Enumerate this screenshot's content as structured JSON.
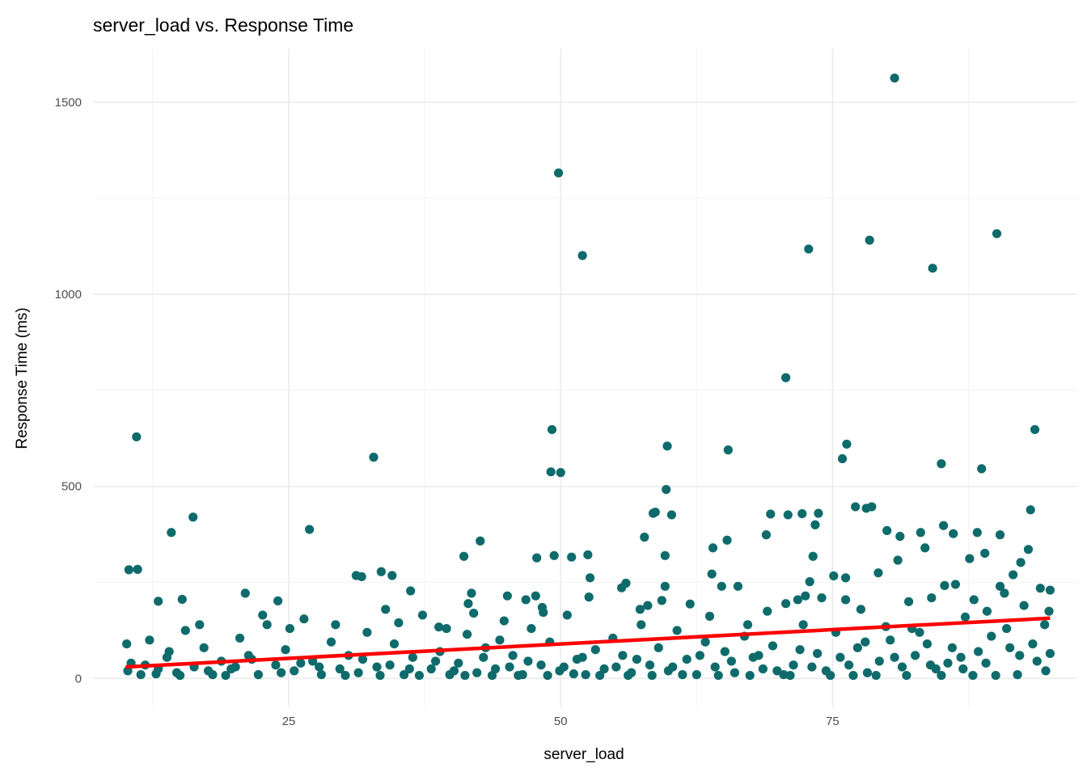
{
  "chart_data": {
    "type": "scatter",
    "title": "server_load vs. Response Time",
    "xlabel": "server_load",
    "ylabel": "Response Time (ms)",
    "xlim": [
      7,
      97.5
    ],
    "ylim": [
      -75,
      1640
    ],
    "x_ticks": [
      25,
      50,
      75
    ],
    "x_tick_labels": [
      "25",
      "50",
      "75"
    ],
    "y_ticks": [
      0,
      500,
      1000,
      1500
    ],
    "y_tick_labels": [
      "0",
      "500",
      "1000",
      "1500"
    ],
    "grid": true,
    "point_color": "#0f6b6b",
    "trend_color": "#ff0000",
    "trend_line": {
      "x": [
        10,
        95
      ],
      "y": [
        30,
        157
      ]
    },
    "points": [
      [
        11.0,
        629
      ],
      [
        10.3,
        283
      ],
      [
        11.1,
        284
      ],
      [
        14.2,
        380
      ],
      [
        16.2,
        420
      ],
      [
        26.9,
        388
      ],
      [
        32.8,
        576
      ],
      [
        49.8,
        1316
      ],
      [
        52.0,
        1101
      ],
      [
        49.2,
        648
      ],
      [
        49.1,
        538
      ],
      [
        50.0,
        536
      ],
      [
        59.8,
        605
      ],
      [
        59.7,
        492
      ],
      [
        65.4,
        595
      ],
      [
        70.7,
        783
      ],
      [
        72.8,
        1118
      ],
      [
        76.3,
        610
      ],
      [
        75.9,
        572
      ],
      [
        78.4,
        1141
      ],
      [
        80.7,
        1563
      ],
      [
        84.2,
        1068
      ],
      [
        85.0,
        559
      ],
      [
        88.7,
        546
      ],
      [
        90.1,
        1158
      ],
      [
        93.6,
        648
      ],
      [
        93.2,
        439
      ],
      [
        78.6,
        447
      ],
      [
        78.1,
        443
      ],
      [
        69.3,
        428
      ],
      [
        70.9,
        426
      ],
      [
        72.2,
        429
      ],
      [
        73.7,
        430
      ],
      [
        58.5,
        430
      ],
      [
        60.2,
        426
      ],
      [
        58.7,
        433
      ],
      [
        73.4,
        400
      ],
      [
        85.2,
        398
      ],
      [
        86.1,
        377
      ],
      [
        88.3,
        380
      ],
      [
        90.4,
        374
      ],
      [
        80.0,
        385
      ],
      [
        81.2,
        370
      ],
      [
        83.1,
        380
      ],
      [
        83.5,
        340
      ],
      [
        93.0,
        336
      ],
      [
        92.3,
        302
      ],
      [
        65.3,
        360
      ],
      [
        64.0,
        340
      ],
      [
        57.7,
        368
      ],
      [
        68.9,
        374
      ],
      [
        42.6,
        358
      ],
      [
        41.1,
        318
      ],
      [
        47.8,
        314
      ],
      [
        49.4,
        320
      ],
      [
        51.0,
        316
      ],
      [
        52.5,
        322
      ],
      [
        31.2,
        268
      ],
      [
        31.7,
        265
      ],
      [
        33.5,
        278
      ],
      [
        34.5,
        268
      ],
      [
        59.6,
        320
      ],
      [
        73.2,
        318
      ],
      [
        75.1,
        267
      ],
      [
        76.2,
        262
      ],
      [
        63.9,
        272
      ],
      [
        77.1,
        447
      ],
      [
        79.2,
        275
      ],
      [
        81.0,
        308
      ],
      [
        87.6,
        312
      ],
      [
        89.0,
        326
      ],
      [
        13.0,
        201
      ],
      [
        15.2,
        206
      ],
      [
        21.0,
        222
      ],
      [
        24.0,
        202
      ],
      [
        36.2,
        228
      ],
      [
        38.8,
        134
      ],
      [
        41.8,
        222
      ],
      [
        41.5,
        195
      ],
      [
        42.0,
        170
      ],
      [
        45.1,
        215
      ],
      [
        46.8,
        205
      ],
      [
        47.7,
        215
      ],
      [
        48.3,
        185
      ],
      [
        48.4,
        172
      ],
      [
        52.6,
        212
      ],
      [
        52.7,
        262
      ],
      [
        55.6,
        236
      ],
      [
        56.0,
        248
      ],
      [
        57.3,
        180
      ],
      [
        58.0,
        190
      ],
      [
        59.3,
        203
      ],
      [
        59.6,
        240
      ],
      [
        61.9,
        194
      ],
      [
        63.7,
        162
      ],
      [
        64.8,
        240
      ],
      [
        66.3,
        240
      ],
      [
        67.2,
        140
      ],
      [
        69.0,
        175
      ],
      [
        70.7,
        195
      ],
      [
        71.8,
        205
      ],
      [
        72.5,
        215
      ],
      [
        72.9,
        252
      ],
      [
        74.0,
        210
      ],
      [
        76.2,
        205
      ],
      [
        77.6,
        180
      ],
      [
        79.9,
        135
      ],
      [
        82.0,
        200
      ],
      [
        83.0,
        120
      ],
      [
        84.1,
        210
      ],
      [
        85.3,
        242
      ],
      [
        86.3,
        245
      ],
      [
        87.2,
        160
      ],
      [
        88.0,
        205
      ],
      [
        89.2,
        175
      ],
      [
        90.4,
        240
      ],
      [
        90.8,
        222
      ],
      [
        91.6,
        270
      ],
      [
        92.6,
        190
      ],
      [
        94.1,
        235
      ],
      [
        95.0,
        230
      ],
      [
        94.9,
        175
      ],
      [
        94.5,
        140
      ],
      [
        93.4,
        90
      ],
      [
        92.2,
        60
      ],
      [
        91.0,
        130
      ],
      [
        89.6,
        110
      ],
      [
        88.4,
        70
      ],
      [
        86.8,
        55
      ],
      [
        85.6,
        40
      ],
      [
        84.5,
        25
      ],
      [
        83.7,
        90
      ],
      [
        82.6,
        60
      ],
      [
        81.4,
        30
      ],
      [
        80.3,
        100
      ],
      [
        79.3,
        45
      ],
      [
        78.2,
        15
      ],
      [
        77.3,
        80
      ],
      [
        76.5,
        35
      ],
      [
        75.3,
        120
      ],
      [
        74.4,
        20
      ],
      [
        73.6,
        65
      ],
      [
        72.3,
        140
      ],
      [
        71.4,
        35
      ],
      [
        70.5,
        10
      ],
      [
        69.5,
        85
      ],
      [
        68.6,
        25
      ],
      [
        67.7,
        55
      ],
      [
        66.9,
        110
      ],
      [
        66.0,
        15
      ],
      [
        65.1,
        70
      ],
      [
        64.2,
        30
      ],
      [
        63.3,
        95
      ],
      [
        62.5,
        10
      ],
      [
        61.6,
        50
      ],
      [
        60.7,
        125
      ],
      [
        59.9,
        20
      ],
      [
        59.0,
        80
      ],
      [
        58.2,
        35
      ],
      [
        57.4,
        140
      ],
      [
        56.5,
        15
      ],
      [
        55.7,
        60
      ],
      [
        54.8,
        105
      ],
      [
        54.0,
        25
      ],
      [
        53.2,
        75
      ],
      [
        52.3,
        10
      ],
      [
        51.5,
        50
      ],
      [
        50.6,
        165
      ],
      [
        49.9,
        20
      ],
      [
        49.0,
        95
      ],
      [
        48.2,
        35
      ],
      [
        47.3,
        130
      ],
      [
        46.5,
        10
      ],
      [
        45.6,
        60
      ],
      [
        44.8,
        150
      ],
      [
        44.0,
        25
      ],
      [
        43.1,
        80
      ],
      [
        42.3,
        15
      ],
      [
        41.4,
        115
      ],
      [
        40.6,
        40
      ],
      [
        39.8,
        10
      ],
      [
        38.9,
        70
      ],
      [
        38.1,
        25
      ],
      [
        37.3,
        165
      ],
      [
        36.4,
        55
      ],
      [
        35.6,
        10
      ],
      [
        34.7,
        90
      ],
      [
        33.9,
        180
      ],
      [
        33.1,
        30
      ],
      [
        32.2,
        120
      ],
      [
        31.4,
        15
      ],
      [
        30.5,
        60
      ],
      [
        29.7,
        25
      ],
      [
        28.9,
        95
      ],
      [
        28.0,
        10
      ],
      [
        27.2,
        45
      ],
      [
        26.4,
        155
      ],
      [
        25.5,
        20
      ],
      [
        24.7,
        75
      ],
      [
        23.8,
        35
      ],
      [
        23.0,
        140
      ],
      [
        22.2,
        10
      ],
      [
        21.3,
        60
      ],
      [
        20.5,
        105
      ],
      [
        19.7,
        25
      ],
      [
        18.8,
        45
      ],
      [
        18.0,
        10
      ],
      [
        17.2,
        80
      ],
      [
        16.3,
        30
      ],
      [
        15.5,
        125
      ],
      [
        14.7,
        15
      ],
      [
        13.8,
        55
      ],
      [
        13.0,
        25
      ],
      [
        12.2,
        100
      ],
      [
        11.4,
        10
      ],
      [
        10.5,
        40
      ],
      [
        10.1,
        90
      ],
      [
        10.2,
        20
      ],
      [
        11.8,
        35
      ],
      [
        12.8,
        12
      ],
      [
        14.0,
        70
      ],
      [
        15.0,
        8
      ],
      [
        16.8,
        140
      ],
      [
        17.6,
        20
      ],
      [
        19.2,
        8
      ],
      [
        20.1,
        30
      ],
      [
        21.6,
        50
      ],
      [
        22.6,
        165
      ],
      [
        24.3,
        15
      ],
      [
        25.1,
        130
      ],
      [
        26.1,
        40
      ],
      [
        27.8,
        30
      ],
      [
        29.3,
        140
      ],
      [
        30.2,
        8
      ],
      [
        31.8,
        50
      ],
      [
        33.4,
        8
      ],
      [
        34.3,
        35
      ],
      [
        35.1,
        145
      ],
      [
        36.1,
        25
      ],
      [
        37.0,
        8
      ],
      [
        38.5,
        45
      ],
      [
        39.5,
        130
      ],
      [
        40.2,
        20
      ],
      [
        41.2,
        8
      ],
      [
        42.9,
        55
      ],
      [
        43.7,
        8
      ],
      [
        44.4,
        100
      ],
      [
        45.3,
        30
      ],
      [
        46.1,
        8
      ],
      [
        47.0,
        45
      ],
      [
        48.8,
        8
      ],
      [
        50.3,
        30
      ],
      [
        51.2,
        12
      ],
      [
        52.0,
        55
      ],
      [
        53.6,
        8
      ],
      [
        55.1,
        30
      ],
      [
        56.2,
        8
      ],
      [
        57.0,
        50
      ],
      [
        58.4,
        8
      ],
      [
        60.3,
        30
      ],
      [
        61.2,
        10
      ],
      [
        62.8,
        60
      ],
      [
        64.5,
        8
      ],
      [
        65.7,
        45
      ],
      [
        67.4,
        8
      ],
      [
        68.2,
        60
      ],
      [
        69.9,
        20
      ],
      [
        71.1,
        8
      ],
      [
        72.0,
        75
      ],
      [
        73.1,
        30
      ],
      [
        74.8,
        8
      ],
      [
        75.7,
        55
      ],
      [
        76.9,
        8
      ],
      [
        78.0,
        95
      ],
      [
        79.0,
        8
      ],
      [
        80.7,
        55
      ],
      [
        81.8,
        8
      ],
      [
        82.3,
        130
      ],
      [
        84.0,
        35
      ],
      [
        85.0,
        8
      ],
      [
        86.0,
        80
      ],
      [
        87.0,
        25
      ],
      [
        87.9,
        8
      ],
      [
        89.1,
        40
      ],
      [
        90.0,
        8
      ],
      [
        91.3,
        80
      ],
      [
        92.0,
        10
      ],
      [
        93.8,
        45
      ],
      [
        94.6,
        20
      ],
      [
        95.0,
        65
      ]
    ]
  }
}
